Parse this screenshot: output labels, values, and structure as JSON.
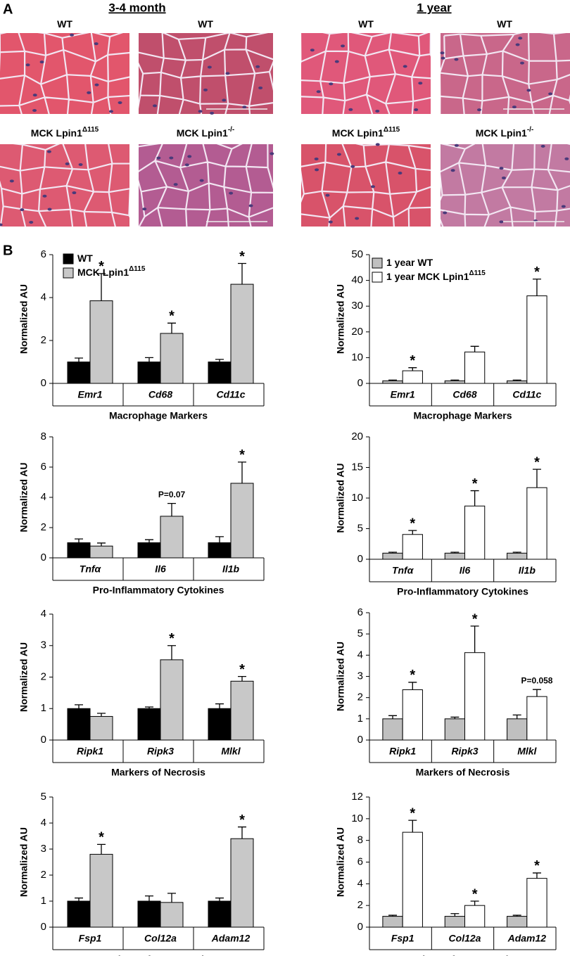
{
  "panel_a": {
    "label": "A",
    "columns": [
      {
        "title": "3-4 month",
        "labels": [
          {
            "text": "WT"
          },
          {
            "text": "WT"
          },
          {
            "text": "MCK Lpin1",
            "sup": "Δ115"
          },
          {
            "text": "MCK Lpin1",
            "sup": "-/-"
          }
        ]
      },
      {
        "title": "1 year",
        "labels": [
          {
            "text": "WT"
          },
          {
            "text": "WT"
          },
          {
            "text": "MCK Lpin1",
            "sup": "Δ115"
          },
          {
            "text": "MCK Lpin1",
            "sup": "-/-"
          }
        ]
      }
    ]
  },
  "panel_b": {
    "label": "B"
  },
  "chart_data": [
    {
      "type": "bar",
      "ylabel": "Normalized AU",
      "xlabel": "Macrophage Markers",
      "categories": [
        "Emr1",
        "Cd68",
        "Cd11c"
      ],
      "ylim": [
        0,
        6
      ],
      "yticks": [
        0,
        2,
        4,
        6
      ],
      "series": [
        {
          "name": "WT",
          "color": "#000000",
          "values": [
            1,
            1,
            1
          ],
          "errors": [
            0.18,
            0.2,
            0.12
          ],
          "annotations": [
            null,
            null,
            null
          ]
        },
        {
          "name": "MCK Lpin1",
          "name_sup": "Δ115",
          "color": "#c8c8c8",
          "values": [
            3.85,
            2.33,
            4.62
          ],
          "errors": [
            1.27,
            0.48,
            0.97
          ],
          "annotations": [
            "*",
            "*",
            "*"
          ]
        }
      ]
    },
    {
      "type": "bar",
      "ylabel": "Normalized AU",
      "xlabel": "Macrophage Markers",
      "categories": [
        "Emr1",
        "Cd68",
        "Cd11c"
      ],
      "ylim": [
        0,
        50
      ],
      "yticks": [
        0,
        10,
        20,
        30,
        40,
        50
      ],
      "series": [
        {
          "name": "1 year WT",
          "color": "#c0c0c0",
          "values": [
            1,
            1,
            1
          ],
          "errors": [
            0.3,
            0.3,
            0.3
          ],
          "annotations": [
            null,
            null,
            null
          ]
        },
        {
          "name": "1 year MCK Lpin1",
          "name_sup": "Δ115",
          "color": "#ffffff",
          "values": [
            4.9,
            12.2,
            34
          ],
          "errors": [
            1.2,
            2.2,
            6.5
          ],
          "annotations": [
            "*",
            null,
            "*"
          ]
        }
      ]
    },
    {
      "type": "bar",
      "ylabel": "Normalized AU",
      "xlabel": "Pro-Inflammatory Cytokines",
      "categories": [
        "Tnfα",
        "Il6",
        "Il1b"
      ],
      "ylim": [
        0,
        8
      ],
      "yticks": [
        0,
        2,
        4,
        6,
        8
      ],
      "series": [
        {
          "color": "#000000",
          "values": [
            1,
            1,
            1
          ],
          "errors": [
            0.25,
            0.2,
            0.4
          ],
          "annotations": [
            null,
            null,
            null
          ]
        },
        {
          "color": "#c8c8c8",
          "values": [
            0.78,
            2.75,
            4.93
          ],
          "errors": [
            0.2,
            0.85,
            1.4
          ],
          "annotations": [
            null,
            "P=0.07",
            "*"
          ]
        }
      ]
    },
    {
      "type": "bar",
      "ylabel": "Normalized AU",
      "xlabel": "Pro-Inflammatory Cytokines",
      "categories": [
        "Tnfα",
        "Il6",
        "Il1b"
      ],
      "ylim": [
        0,
        20
      ],
      "yticks": [
        0,
        5,
        10,
        15,
        20
      ],
      "series": [
        {
          "color": "#c0c0c0",
          "values": [
            1,
            1,
            1
          ],
          "errors": [
            0.15,
            0.15,
            0.15
          ],
          "annotations": [
            null,
            null,
            null
          ]
        },
        {
          "color": "#ffffff",
          "values": [
            4.05,
            8.7,
            11.7
          ],
          "errors": [
            0.65,
            2.5,
            3
          ],
          "annotations": [
            "*",
            "*",
            "*"
          ]
        }
      ]
    },
    {
      "type": "bar",
      "ylabel": "Normalized AU",
      "xlabel": "Markers of Necrosis",
      "categories": [
        "Ripk1",
        "Ripk3",
        "Mlkl"
      ],
      "ylim": [
        0,
        4
      ],
      "yticks": [
        0,
        1,
        2,
        3,
        4
      ],
      "series": [
        {
          "color": "#000000",
          "values": [
            1,
            1,
            1
          ],
          "errors": [
            0.12,
            0.05,
            0.15
          ],
          "annotations": [
            null,
            null,
            null
          ]
        },
        {
          "color": "#c8c8c8",
          "values": [
            0.75,
            2.55,
            1.87
          ],
          "errors": [
            0.1,
            0.45,
            0.15
          ],
          "annotations": [
            null,
            "*",
            "*"
          ]
        }
      ]
    },
    {
      "type": "bar",
      "ylabel": "Normalized AU",
      "xlabel": "Markers of Necrosis",
      "categories": [
        "Ripk1",
        "Ripk3",
        "Mlkl"
      ],
      "ylim": [
        0,
        6
      ],
      "yticks": [
        0,
        1,
        2,
        3,
        4,
        5,
        6
      ],
      "series": [
        {
          "color": "#c0c0c0",
          "values": [
            1,
            1,
            1
          ],
          "errors": [
            0.15,
            0.08,
            0.18
          ],
          "annotations": [
            null,
            null,
            null
          ]
        },
        {
          "color": "#ffffff",
          "values": [
            2.37,
            4.12,
            2.05
          ],
          "errors": [
            0.35,
            1.25,
            0.33
          ],
          "annotations": [
            "*",
            "*",
            "P=0.058"
          ]
        }
      ]
    },
    {
      "type": "bar",
      "ylabel": "Normalized AU",
      "xlabel": "Markers of Regeneration",
      "categories": [
        "Fsp1",
        "Col12a",
        "Adam12"
      ],
      "ylim": [
        0,
        5
      ],
      "yticks": [
        0,
        1,
        2,
        3,
        4,
        5
      ],
      "series": [
        {
          "color": "#000000",
          "values": [
            1,
            1,
            1
          ],
          "errors": [
            0.12,
            0.2,
            0.12
          ],
          "annotations": [
            null,
            null,
            null
          ]
        },
        {
          "color": "#c8c8c8",
          "values": [
            2.8,
            0.95,
            3.4
          ],
          "errors": [
            0.38,
            0.35,
            0.45
          ],
          "annotations": [
            "*",
            null,
            "*"
          ]
        }
      ]
    },
    {
      "type": "bar",
      "ylabel": "Normalized AU",
      "xlabel": "Markers of Regeneration",
      "categories": [
        "Fsp1",
        "Col12a",
        "Adam12"
      ],
      "ylim": [
        0,
        12
      ],
      "yticks": [
        0,
        2,
        4,
        6,
        8,
        10,
        12
      ],
      "series": [
        {
          "color": "#c0c0c0",
          "values": [
            1,
            1,
            1
          ],
          "errors": [
            0.1,
            0.25,
            0.1
          ],
          "annotations": [
            null,
            null,
            null
          ]
        },
        {
          "color": "#ffffff",
          "values": [
            8.75,
            2,
            4.5
          ],
          "errors": [
            1.1,
            0.4,
            0.5
          ],
          "annotations": [
            "*",
            "*",
            "*"
          ]
        }
      ]
    }
  ]
}
